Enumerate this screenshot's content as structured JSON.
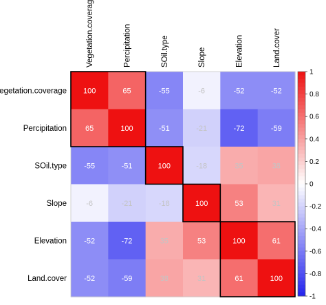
{
  "chart_data": {
    "type": "heatmap",
    "title": "",
    "xlabel": "",
    "ylabel": "",
    "rows": [
      "Vegetation.coverage",
      "Percipitation",
      "SOil.type",
      "Slope",
      "Elevation",
      "Land.cover"
    ],
    "columns": [
      "Vegetation.coverage",
      "Percipitation",
      "SOil.type",
      "Slope",
      "Elevation",
      "Land.cover"
    ],
    "values": [
      [
        100,
        65,
        -55,
        -6,
        -52,
        -52
      ],
      [
        65,
        100,
        -51,
        -21,
        -72,
        -59
      ],
      [
        -55,
        -51,
        100,
        -18,
        35,
        38
      ],
      [
        -6,
        -21,
        -18,
        100,
        53,
        31
      ],
      [
        -52,
        -72,
        35,
        53,
        100,
        61
      ],
      [
        -52,
        -59,
        38,
        31,
        61,
        100
      ]
    ],
    "colorbar": {
      "min": -1,
      "max": 1,
      "ticks": [
        "1",
        "0.8",
        "0.6",
        "0.4",
        "0.2",
        "0",
        "-0.2",
        "-0.4",
        "-0.6",
        "-0.8",
        "-1"
      ],
      "colors": {
        "negative": "#2323ee",
        "neutral": "#ffffff",
        "positive": "#ee1111"
      }
    },
    "clusters": [
      {
        "rows": [
          0,
          1
        ],
        "cols": [
          0,
          1
        ]
      },
      {
        "rows": [
          2,
          2
        ],
        "cols": [
          2,
          2
        ]
      },
      {
        "rows": [
          3,
          3
        ],
        "cols": [
          3,
          3
        ]
      },
      {
        "rows": [
          4,
          5
        ],
        "cols": [
          4,
          5
        ]
      }
    ]
  }
}
